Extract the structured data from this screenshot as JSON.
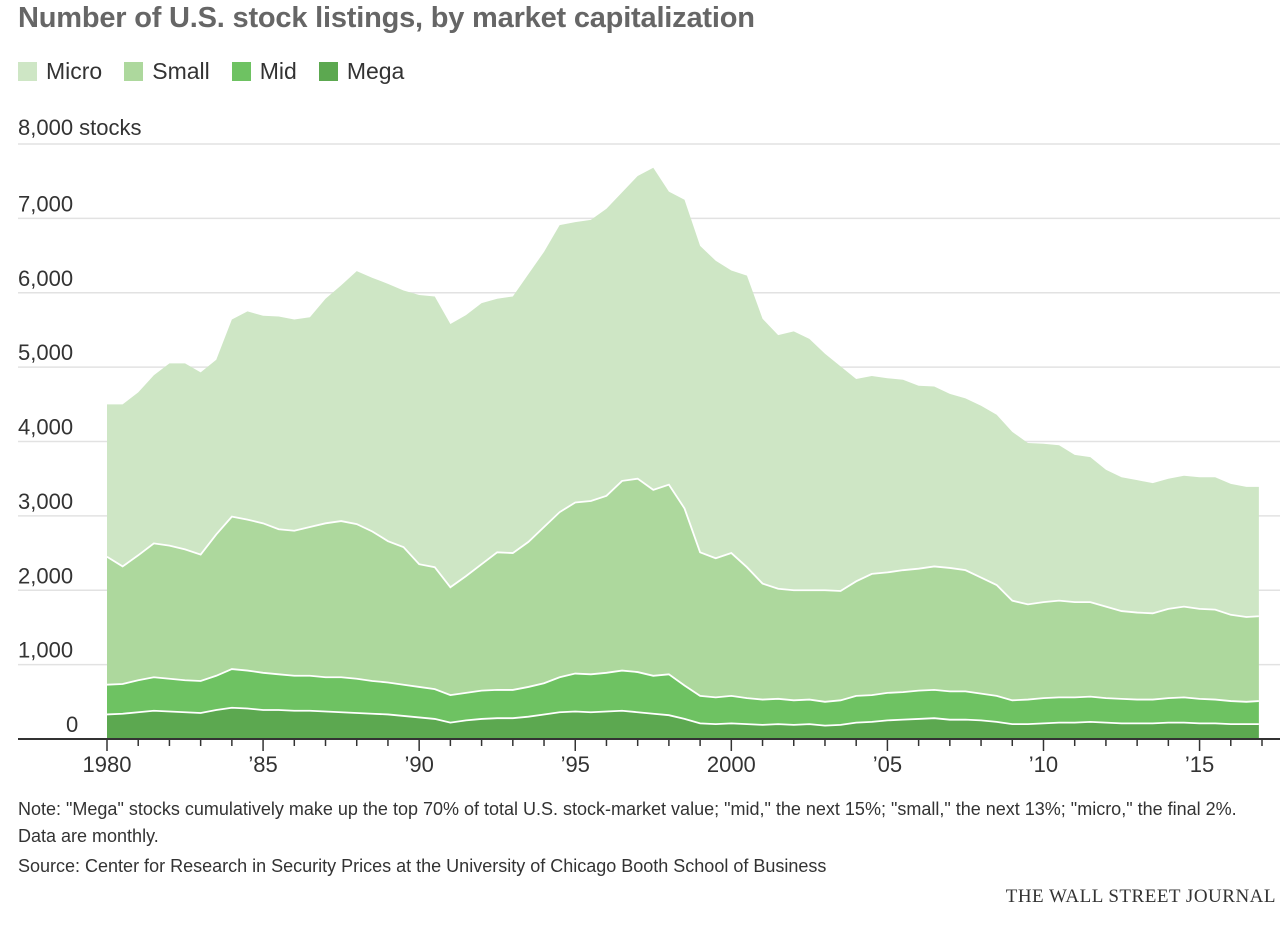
{
  "chart_data": {
    "type": "area",
    "stacked": true,
    "title": "Number of U.S. stock listings, by market capitalization",
    "ylabel": "8,000 stocks",
    "xlabel": "",
    "ylim": [
      0,
      8000
    ],
    "xlim": [
      1980,
      2017
    ],
    "grid": true,
    "legend_position": "top-left",
    "ytick_labels": [
      "0",
      "1,000",
      "2,000",
      "3,000",
      "4,000",
      "5,000",
      "6,000",
      "7,000"
    ],
    "xtick_labels": [
      "1980",
      "’85",
      "’90",
      "’95",
      "2000",
      "’05",
      "’10",
      "’15"
    ],
    "x": [
      1980.0,
      1980.5,
      1981.0,
      1981.5,
      1982.0,
      1982.5,
      1983.0,
      1983.5,
      1984.0,
      1984.5,
      1985.0,
      1985.5,
      1986.0,
      1986.5,
      1987.0,
      1987.5,
      1988.0,
      1988.5,
      1989.0,
      1989.5,
      1990.0,
      1990.5,
      1991.0,
      1991.5,
      1992.0,
      1992.5,
      1993.0,
      1993.5,
      1994.0,
      1994.5,
      1995.0,
      1995.5,
      1996.0,
      1996.5,
      1997.0,
      1997.5,
      1998.0,
      1998.5,
      1999.0,
      1999.5,
      2000.0,
      2000.5,
      2001.0,
      2001.5,
      2002.0,
      2002.5,
      2003.0,
      2003.5,
      2004.0,
      2004.5,
      2005.0,
      2005.5,
      2006.0,
      2006.5,
      2007.0,
      2007.5,
      2008.0,
      2008.5,
      2009.0,
      2009.5,
      2010.0,
      2010.5,
      2011.0,
      2011.5,
      2012.0,
      2012.5,
      2013.0,
      2013.5,
      2014.0,
      2014.5,
      2015.0,
      2015.5,
      2016.0,
      2016.5,
      2016.9
    ],
    "series": [
      {
        "name": "Mega",
        "color": "#5ca850",
        "values": [
          330,
          340,
          360,
          380,
          370,
          360,
          350,
          390,
          420,
          410,
          390,
          390,
          380,
          380,
          370,
          360,
          350,
          340,
          330,
          310,
          290,
          270,
          220,
          250,
          270,
          280,
          280,
          300,
          330,
          360,
          370,
          360,
          370,
          380,
          360,
          340,
          320,
          270,
          210,
          200,
          210,
          200,
          190,
          200,
          190,
          200,
          180,
          190,
          220,
          230,
          250,
          260,
          270,
          280,
          260,
          260,
          250,
          230,
          200,
          200,
          210,
          220,
          220,
          230,
          220,
          210,
          210,
          210,
          220,
          220,
          210,
          210,
          200,
          200,
          200
        ]
      },
      {
        "name": "Mid",
        "color": "#6ec262",
        "values": [
          400,
          400,
          430,
          450,
          440,
          430,
          430,
          460,
          520,
          510,
          500,
          480,
          470,
          470,
          460,
          470,
          460,
          440,
          430,
          420,
          410,
          400,
          370,
          370,
          380,
          380,
          380,
          400,
          420,
          470,
          510,
          510,
          520,
          540,
          540,
          510,
          550,
          450,
          370,
          360,
          370,
          350,
          340,
          340,
          330,
          330,
          320,
          330,
          360,
          360,
          370,
          370,
          380,
          380,
          380,
          380,
          360,
          350,
          320,
          330,
          340,
          340,
          340,
          340,
          330,
          330,
          320,
          320,
          330,
          340,
          330,
          320,
          310,
          300,
          310
        ]
      },
      {
        "name": "Small",
        "color": "#add89d",
        "values": [
          1720,
          1580,
          1680,
          1800,
          1790,
          1760,
          1700,
          1900,
          2050,
          2030,
          2010,
          1950,
          1950,
          2000,
          2070,
          2100,
          2080,
          2010,
          1900,
          1850,
          1650,
          1640,
          1450,
          1570,
          1700,
          1850,
          1840,
          1950,
          2100,
          2220,
          2300,
          2330,
          2380,
          2550,
          2600,
          2500,
          2550,
          2380,
          1930,
          1870,
          1920,
          1760,
          1560,
          1480,
          1480,
          1470,
          1500,
          1470,
          1540,
          1630,
          1620,
          1640,
          1640,
          1660,
          1660,
          1630,
          1560,
          1490,
          1340,
          1280,
          1290,
          1300,
          1280,
          1270,
          1230,
          1180,
          1170,
          1160,
          1200,
          1220,
          1210,
          1210,
          1160,
          1140,
          1140
        ]
      },
      {
        "name": "Micro",
        "color": "#cee6c5",
        "values": [
          2050,
          2180,
          2190,
          2260,
          2450,
          2500,
          2450,
          2350,
          2650,
          2800,
          2790,
          2860,
          2840,
          2820,
          3020,
          3170,
          3400,
          3410,
          3460,
          3450,
          3620,
          3640,
          3540,
          3510,
          3510,
          3410,
          3450,
          3600,
          3700,
          3860,
          3770,
          3780,
          3860,
          3880,
          4070,
          4330,
          3940,
          4150,
          4120,
          4000,
          3800,
          3920,
          3560,
          3410,
          3480,
          3380,
          3180,
          3020,
          2720,
          2660,
          2610,
          2560,
          2460,
          2420,
          2340,
          2310,
          2310,
          2290,
          2270,
          2170,
          2130,
          2090,
          1980,
          1950,
          1840,
          1800,
          1780,
          1750,
          1750,
          1760,
          1770,
          1780,
          1760,
          1750,
          1740
        ]
      }
    ]
  },
  "legend": [
    {
      "label": "Micro",
      "color": "#cee6c5"
    },
    {
      "label": "Small",
      "color": "#add89d"
    },
    {
      "label": "Mid",
      "color": "#6ec262"
    },
    {
      "label": "Mega",
      "color": "#5ca850"
    }
  ],
  "note": "Note: \"Mega\" stocks cumulatively make up the top 70% of total U.S. stock-market value; \"mid,\" the next 15%; \"small,\" the next 13%; \"micro,\" the final 2%. Data are monthly.",
  "source": "Source: Center for Research in Security Prices at the University of Chicago Booth School of Business",
  "credit": "THE WALL STREET JOURNAL"
}
